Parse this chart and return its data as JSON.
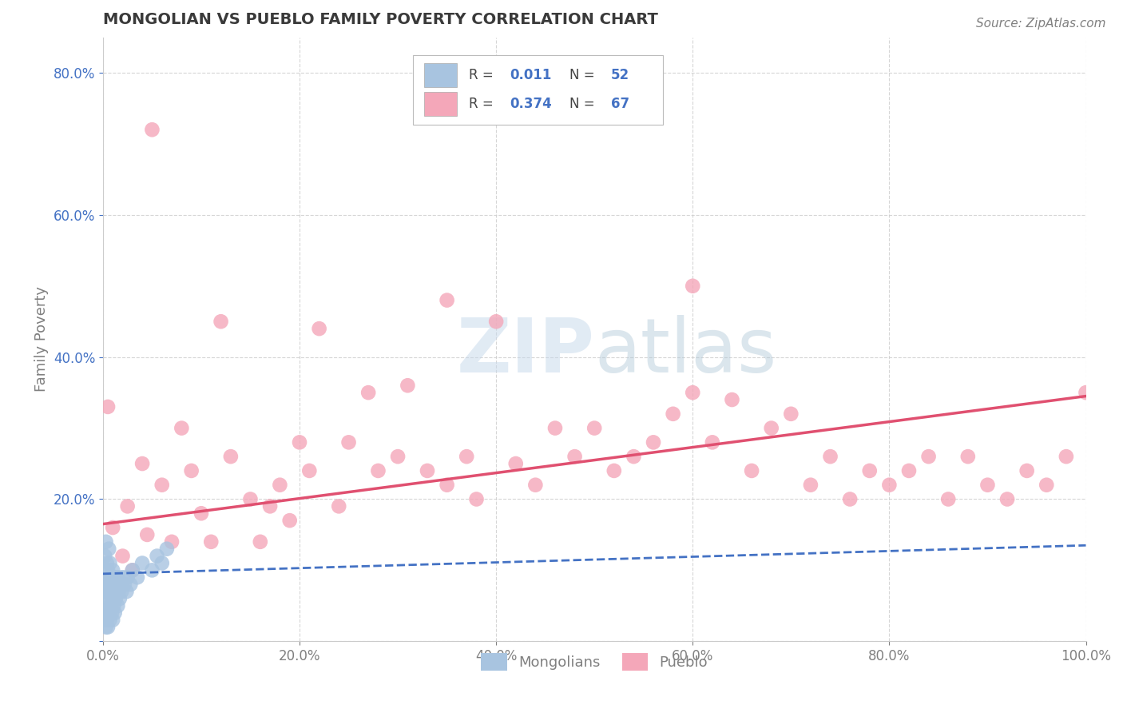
{
  "title": "MONGOLIAN VS PUEBLO FAMILY POVERTY CORRELATION CHART",
  "source": "Source: ZipAtlas.com",
  "ylabel": "Family Poverty",
  "xlabel": "",
  "watermark": "ZIPatlas",
  "xlim": [
    0.0,
    1.0
  ],
  "ylim": [
    0.0,
    0.85
  ],
  "xtick_labels": [
    "0.0%",
    "20.0%",
    "40.0%",
    "60.0%",
    "80.0%",
    "100.0%"
  ],
  "ytick_labels": [
    "",
    "20.0%",
    "40.0%",
    "60.0%",
    "80.0%"
  ],
  "ytick_positions": [
    0.0,
    0.2,
    0.4,
    0.6,
    0.8
  ],
  "xtick_positions": [
    0.0,
    0.2,
    0.4,
    0.6,
    0.8,
    1.0
  ],
  "mongolian_color": "#a8c4e0",
  "pueblo_color": "#f4a7b9",
  "mongolian_line_color": "#4472c4",
  "pueblo_line_color": "#e05070",
  "legend_R1": "0.011",
  "legend_N1": "52",
  "legend_R2": "0.374",
  "legend_N2": "67",
  "legend_label1": "Mongolians",
  "legend_label2": "Pueblo",
  "title_color": "#3a3a3a",
  "axis_color": "#808080",
  "grid_color": "#cccccc",
  "mongolian_x": [
    0.001,
    0.001,
    0.002,
    0.002,
    0.002,
    0.003,
    0.003,
    0.003,
    0.003,
    0.004,
    0.004,
    0.004,
    0.005,
    0.005,
    0.005,
    0.006,
    0.006,
    0.006,
    0.007,
    0.007,
    0.007,
    0.008,
    0.008,
    0.009,
    0.009,
    0.01,
    0.01,
    0.01,
    0.011,
    0.011,
    0.012,
    0.012,
    0.013,
    0.014,
    0.015,
    0.015,
    0.016,
    0.017,
    0.018,
    0.019,
    0.02,
    0.022,
    0.024,
    0.025,
    0.028,
    0.03,
    0.035,
    0.04,
    0.05,
    0.055,
    0.06,
    0.065
  ],
  "mongolian_y": [
    0.04,
    0.08,
    0.03,
    0.07,
    0.12,
    0.02,
    0.05,
    0.09,
    0.14,
    0.03,
    0.07,
    0.11,
    0.02,
    0.06,
    0.1,
    0.04,
    0.08,
    0.13,
    0.03,
    0.07,
    0.11,
    0.05,
    0.09,
    0.04,
    0.08,
    0.03,
    0.06,
    0.1,
    0.05,
    0.09,
    0.04,
    0.07,
    0.06,
    0.08,
    0.05,
    0.09,
    0.07,
    0.06,
    0.08,
    0.07,
    0.09,
    0.08,
    0.07,
    0.09,
    0.08,
    0.1,
    0.09,
    0.11,
    0.1,
    0.12,
    0.11,
    0.13
  ],
  "pueblo_x": [
    0.005,
    0.01,
    0.02,
    0.025,
    0.03,
    0.04,
    0.045,
    0.05,
    0.06,
    0.07,
    0.08,
    0.09,
    0.1,
    0.11,
    0.12,
    0.13,
    0.15,
    0.16,
    0.17,
    0.18,
    0.19,
    0.2,
    0.21,
    0.22,
    0.24,
    0.25,
    0.27,
    0.28,
    0.3,
    0.31,
    0.33,
    0.35,
    0.37,
    0.38,
    0.4,
    0.42,
    0.44,
    0.46,
    0.48,
    0.5,
    0.52,
    0.54,
    0.56,
    0.58,
    0.6,
    0.62,
    0.64,
    0.66,
    0.68,
    0.7,
    0.72,
    0.74,
    0.76,
    0.78,
    0.8,
    0.82,
    0.84,
    0.86,
    0.88,
    0.9,
    0.92,
    0.94,
    0.96,
    0.98,
    1.0,
    0.35,
    0.6
  ],
  "pueblo_y": [
    0.33,
    0.16,
    0.12,
    0.19,
    0.1,
    0.25,
    0.15,
    0.72,
    0.22,
    0.14,
    0.3,
    0.24,
    0.18,
    0.14,
    0.45,
    0.26,
    0.2,
    0.14,
    0.19,
    0.22,
    0.17,
    0.28,
    0.24,
    0.44,
    0.19,
    0.28,
    0.35,
    0.24,
    0.26,
    0.36,
    0.24,
    0.22,
    0.26,
    0.2,
    0.45,
    0.25,
    0.22,
    0.3,
    0.26,
    0.3,
    0.24,
    0.26,
    0.28,
    0.32,
    0.35,
    0.28,
    0.34,
    0.24,
    0.3,
    0.32,
    0.22,
    0.26,
    0.2,
    0.24,
    0.22,
    0.24,
    0.26,
    0.2,
    0.26,
    0.22,
    0.2,
    0.24,
    0.22,
    0.26,
    0.35,
    0.48,
    0.5
  ]
}
